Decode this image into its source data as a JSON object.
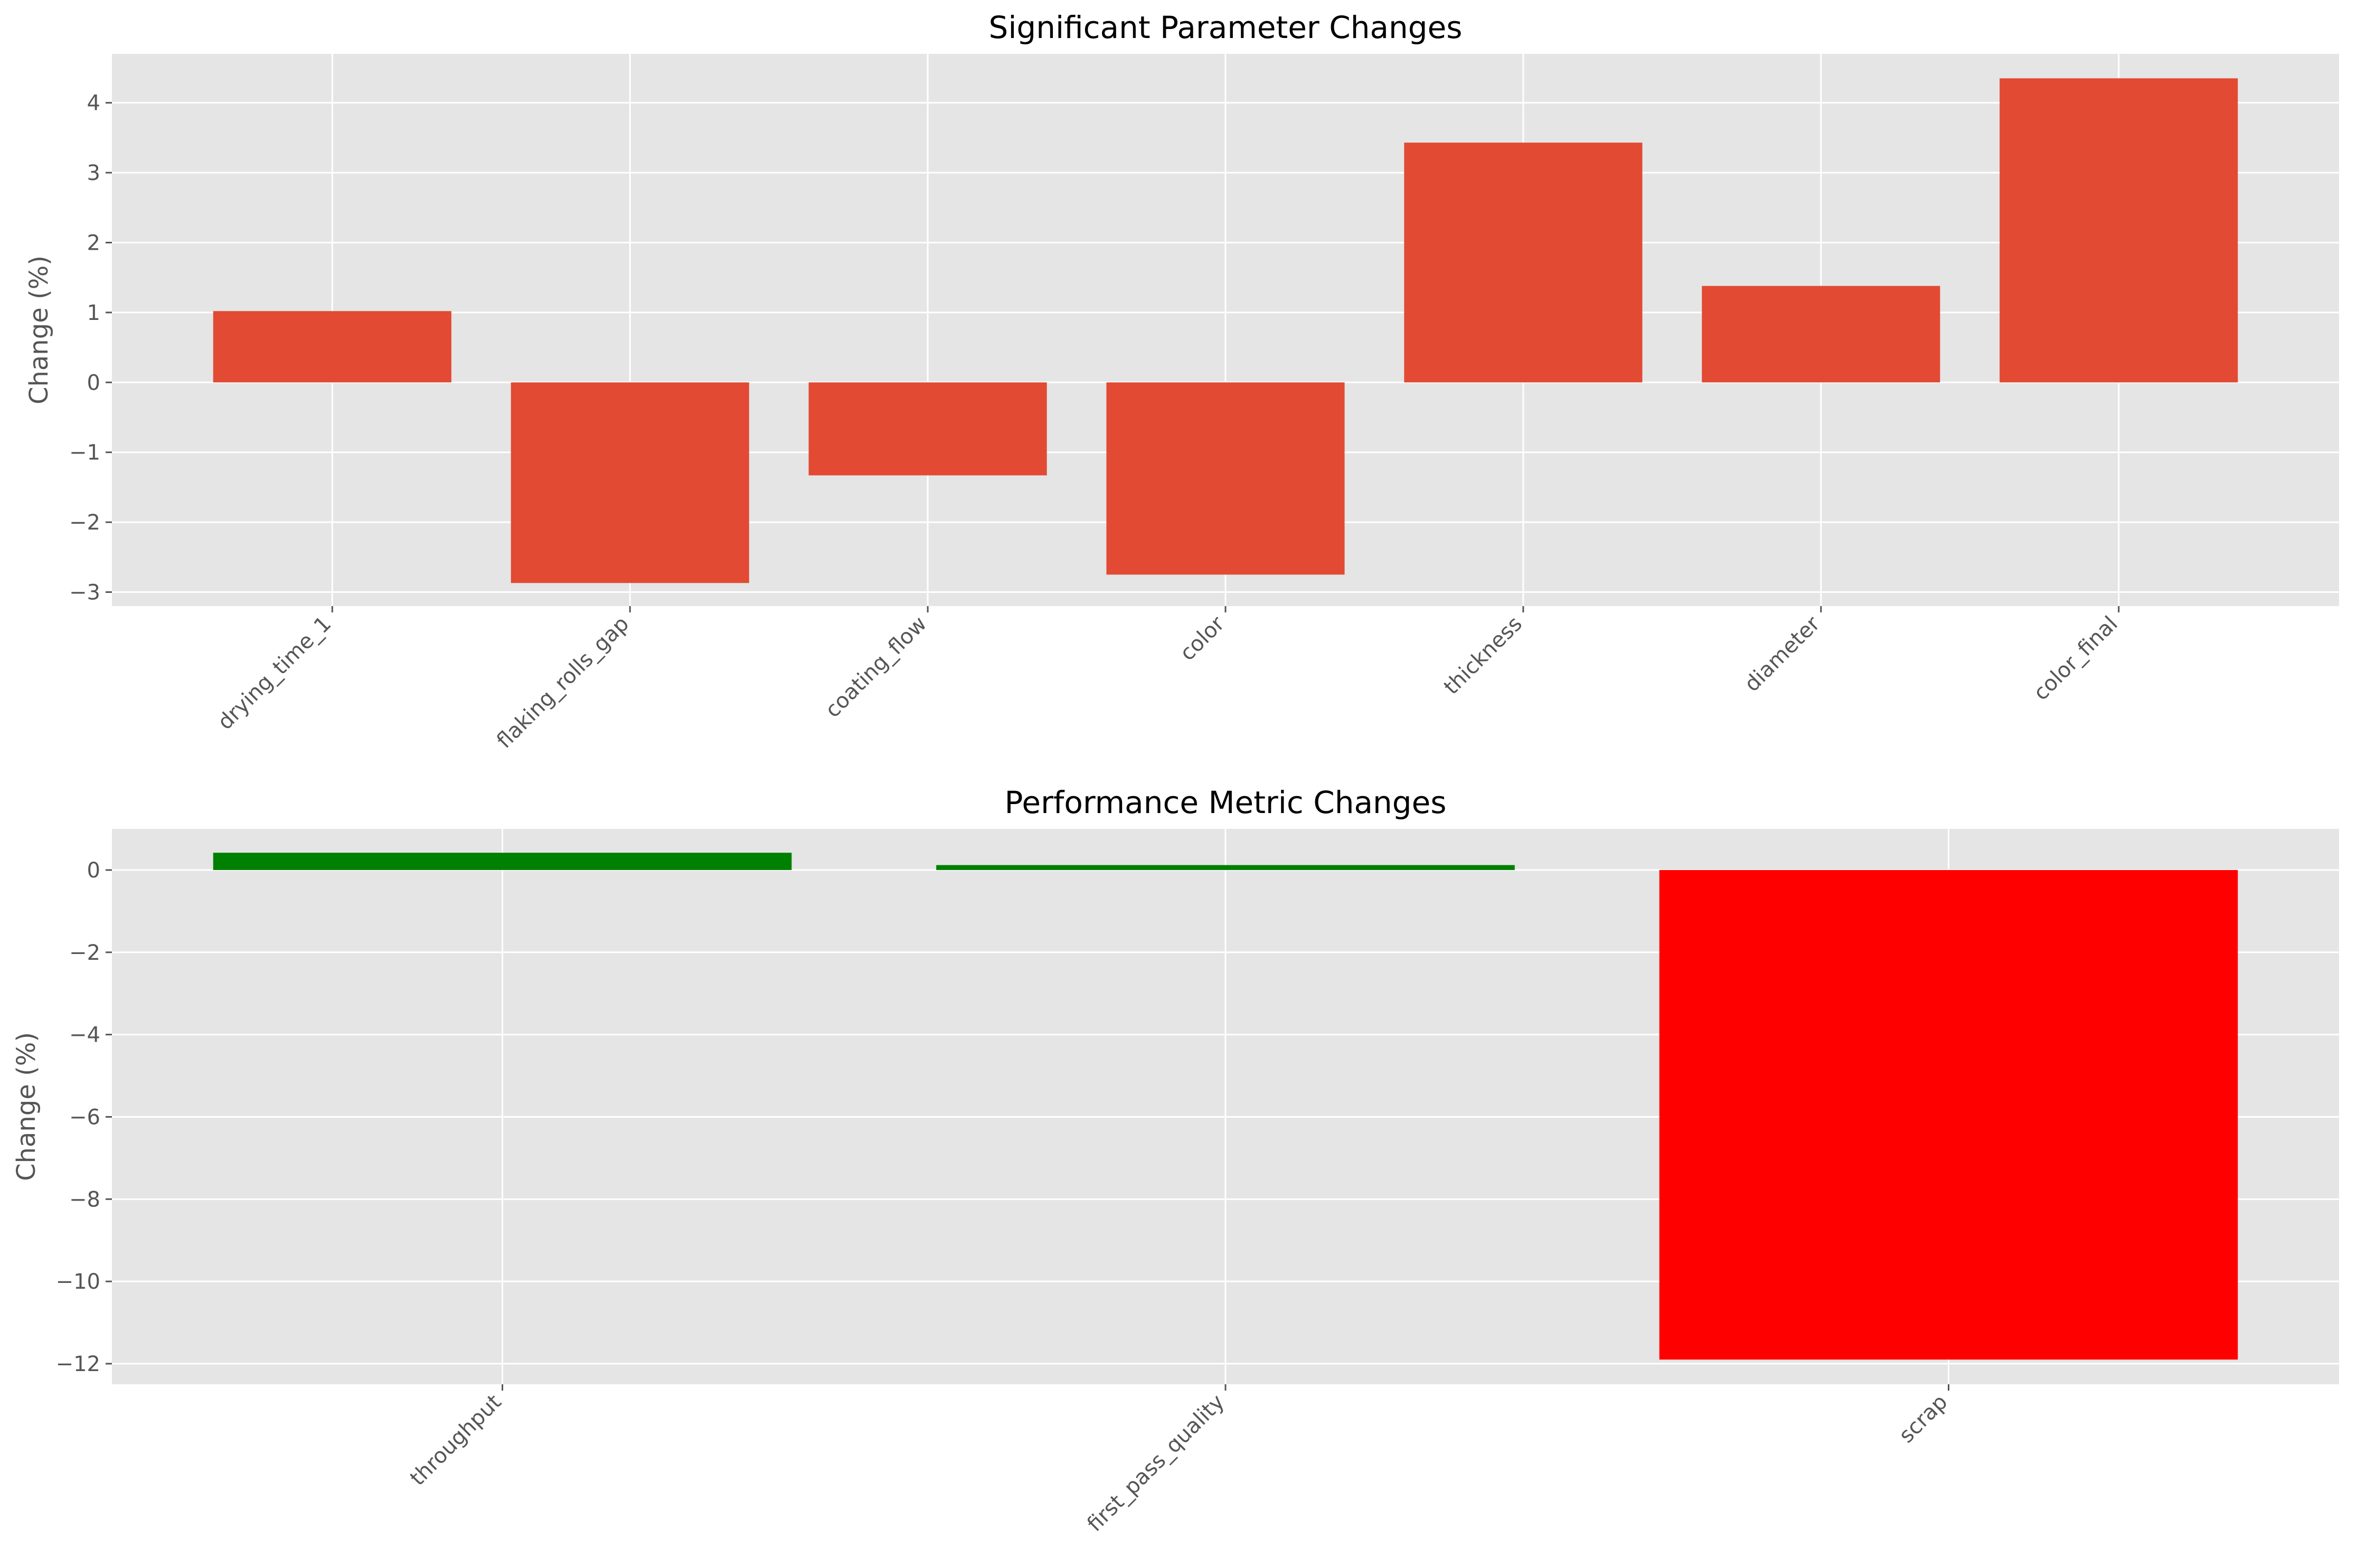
{
  "chart_data": [
    {
      "type": "bar",
      "title": "Significant Parameter Changes",
      "xlabel": "",
      "ylabel": "Change (%)",
      "categories": [
        "drying_time_1",
        "flaking_rolls_gap",
        "coating_flow",
        "color",
        "thickness",
        "diameter",
        "color_final"
      ],
      "values": [
        1.02,
        -2.87,
        -1.33,
        -2.75,
        3.43,
        1.38,
        4.35
      ],
      "ylim": [
        -3.2,
        4.7
      ],
      "yticks": [
        -3,
        -2,
        -1,
        0,
        1,
        2,
        3,
        4
      ],
      "ytick_labels": [
        "−3",
        "−2",
        "−1",
        "0",
        "1",
        "2",
        "3",
        "4"
      ],
      "colors": [
        "#e24a33",
        "#e24a33",
        "#e24a33",
        "#e24a33",
        "#e24a33",
        "#e24a33",
        "#e24a33"
      ],
      "grid": true,
      "background": "#e5e5e5"
    },
    {
      "type": "bar",
      "title": "Performance Metric Changes",
      "xlabel": "",
      "ylabel": "Change (%)",
      "categories": [
        "throughput",
        "first_pass_quality",
        "scrap"
      ],
      "values": [
        0.42,
        0.12,
        -11.9
      ],
      "ylim": [
        -12.5,
        1.0
      ],
      "yticks": [
        -12,
        -10,
        -8,
        -6,
        -4,
        -2,
        0
      ],
      "ytick_labels": [
        "−12",
        "−10",
        "−8",
        "−6",
        "−4",
        "−2",
        "0"
      ],
      "colors": [
        "#008000",
        "#008000",
        "#ff0000"
      ],
      "grid": true,
      "background": "#e5e5e5"
    }
  ]
}
